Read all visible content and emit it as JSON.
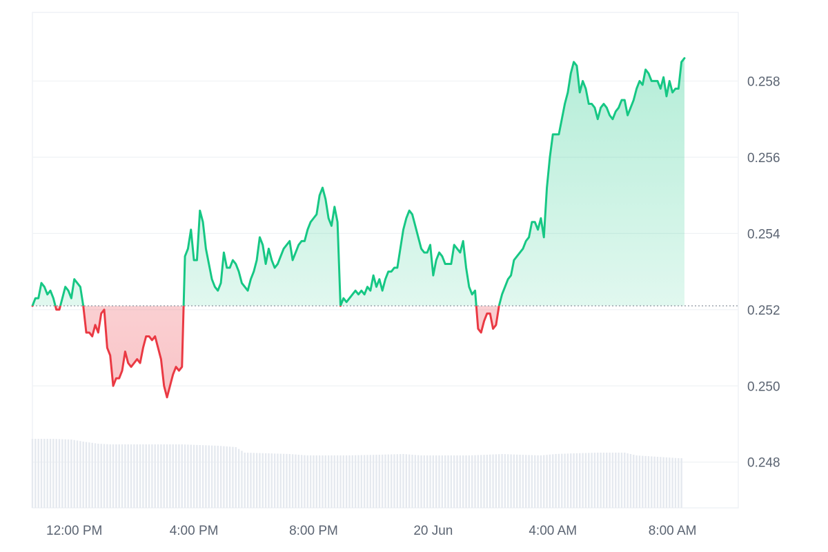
{
  "chart_data": {
    "type": "area",
    "title": "",
    "xlabel": "",
    "ylabel": "",
    "baseline": 0.2521,
    "ylim": [
      0.2468,
      0.2598
    ],
    "y_ticks": [
      0.248,
      0.25,
      0.252,
      0.254,
      0.256,
      0.258
    ],
    "y_tick_labels": [
      "0.248",
      "0.250",
      "0.252",
      "0.254",
      "0.256",
      "0.258"
    ],
    "x_ticks": [
      {
        "t": 12.0,
        "label": "12:00 PM"
      },
      {
        "t": 16.0,
        "label": "4:00 PM"
      },
      {
        "t": 20.0,
        "label": "8:00 PM"
      },
      {
        "t": 24.0,
        "label": "20 Jun"
      },
      {
        "t": 28.0,
        "label": "4:00 AM"
      },
      {
        "t": 32.0,
        "label": "8:00 AM"
      }
    ],
    "x_range": [
      10.6,
      34.2
    ],
    "grid": true,
    "colors": {
      "up_line": "#16c784",
      "down_line": "#ea3943",
      "up_fill": "#16c784",
      "down_fill": "#ea3943",
      "volume": "#e5e9ef",
      "grid": "#eff2f5",
      "baseline": "#8a939f"
    },
    "price": [
      [
        10.6,
        0.2521
      ],
      [
        10.7,
        0.2523
      ],
      [
        10.8,
        0.2523
      ],
      [
        10.9,
        0.2527
      ],
      [
        11.0,
        0.2526
      ],
      [
        11.1,
        0.2524
      ],
      [
        11.2,
        0.2525
      ],
      [
        11.3,
        0.2523
      ],
      [
        11.4,
        0.252
      ],
      [
        11.5,
        0.252
      ],
      [
        11.6,
        0.2523
      ],
      [
        11.7,
        0.2526
      ],
      [
        11.8,
        0.2525
      ],
      [
        11.9,
        0.2523
      ],
      [
        12.0,
        0.2528
      ],
      [
        12.1,
        0.2527
      ],
      [
        12.2,
        0.2526
      ],
      [
        12.3,
        0.2521
      ],
      [
        12.4,
        0.2514
      ],
      [
        12.5,
        0.2514
      ],
      [
        12.6,
        0.2513
      ],
      [
        12.7,
        0.2516
      ],
      [
        12.8,
        0.2514
      ],
      [
        12.9,
        0.2519
      ],
      [
        13.0,
        0.252
      ],
      [
        13.1,
        0.251
      ],
      [
        13.2,
        0.2508
      ],
      [
        13.3,
        0.25
      ],
      [
        13.4,
        0.2502
      ],
      [
        13.5,
        0.2502
      ],
      [
        13.6,
        0.2504
      ],
      [
        13.7,
        0.2509
      ],
      [
        13.8,
        0.2506
      ],
      [
        13.9,
        0.2505
      ],
      [
        14.0,
        0.2506
      ],
      [
        14.1,
        0.2507
      ],
      [
        14.2,
        0.2506
      ],
      [
        14.3,
        0.251
      ],
      [
        14.4,
        0.2513
      ],
      [
        14.5,
        0.2513
      ],
      [
        14.6,
        0.2512
      ],
      [
        14.7,
        0.2513
      ],
      [
        14.8,
        0.251
      ],
      [
        14.9,
        0.2507
      ],
      [
        15.0,
        0.25
      ],
      [
        15.1,
        0.2497
      ],
      [
        15.2,
        0.25
      ],
      [
        15.3,
        0.2503
      ],
      [
        15.4,
        0.2505
      ],
      [
        15.5,
        0.2504
      ],
      [
        15.6,
        0.2505
      ],
      [
        15.7,
        0.2534
      ],
      [
        15.8,
        0.2536
      ],
      [
        15.9,
        0.2541
      ],
      [
        16.0,
        0.2533
      ],
      [
        16.1,
        0.2533
      ],
      [
        16.2,
        0.2546
      ],
      [
        16.3,
        0.2543
      ],
      [
        16.4,
        0.2536
      ],
      [
        16.5,
        0.2532
      ],
      [
        16.6,
        0.2528
      ],
      [
        16.7,
        0.2526
      ],
      [
        16.8,
        0.2525
      ],
      [
        16.9,
        0.2527
      ],
      [
        17.0,
        0.2535
      ],
      [
        17.1,
        0.2531
      ],
      [
        17.2,
        0.2531
      ],
      [
        17.3,
        0.2533
      ],
      [
        17.4,
        0.2532
      ],
      [
        17.5,
        0.253
      ],
      [
        17.6,
        0.2527
      ],
      [
        17.7,
        0.2526
      ],
      [
        17.8,
        0.2525
      ],
      [
        17.9,
        0.2528
      ],
      [
        18.0,
        0.253
      ],
      [
        18.1,
        0.2533
      ],
      [
        18.2,
        0.2539
      ],
      [
        18.3,
        0.2537
      ],
      [
        18.4,
        0.2532
      ],
      [
        18.5,
        0.2536
      ],
      [
        18.6,
        0.2533
      ],
      [
        18.7,
        0.2531
      ],
      [
        18.8,
        0.2532
      ],
      [
        18.9,
        0.2534
      ],
      [
        19.0,
        0.2536
      ],
      [
        19.1,
        0.2537
      ],
      [
        19.2,
        0.2538
      ],
      [
        19.3,
        0.2533
      ],
      [
        19.4,
        0.2535
      ],
      [
        19.5,
        0.2537
      ],
      [
        19.6,
        0.2538
      ],
      [
        19.7,
        0.2538
      ],
      [
        19.8,
        0.2541
      ],
      [
        19.9,
        0.2543
      ],
      [
        20.0,
        0.2544
      ],
      [
        20.1,
        0.2545
      ],
      [
        20.2,
        0.255
      ],
      [
        20.3,
        0.2552
      ],
      [
        20.4,
        0.2549
      ],
      [
        20.5,
        0.2544
      ],
      [
        20.6,
        0.2542
      ],
      [
        20.7,
        0.2547
      ],
      [
        20.8,
        0.2543
      ],
      [
        20.9,
        0.2521
      ],
      [
        21.0,
        0.2523
      ],
      [
        21.1,
        0.2522
      ],
      [
        21.2,
        0.2523
      ],
      [
        21.3,
        0.2524
      ],
      [
        21.4,
        0.2525
      ],
      [
        21.5,
        0.2524
      ],
      [
        21.6,
        0.2525
      ],
      [
        21.7,
        0.2524
      ],
      [
        21.8,
        0.2526
      ],
      [
        21.9,
        0.2525
      ],
      [
        22.0,
        0.2529
      ],
      [
        22.1,
        0.2526
      ],
      [
        22.2,
        0.2528
      ],
      [
        22.3,
        0.2525
      ],
      [
        22.4,
        0.2528
      ],
      [
        22.5,
        0.253
      ],
      [
        22.6,
        0.253
      ],
      [
        22.7,
        0.2531
      ],
      [
        22.8,
        0.2531
      ],
      [
        22.9,
        0.2536
      ],
      [
        23.0,
        0.2541
      ],
      [
        23.1,
        0.2544
      ],
      [
        23.2,
        0.2546
      ],
      [
        23.3,
        0.2545
      ],
      [
        23.4,
        0.2542
      ],
      [
        23.5,
        0.2539
      ],
      [
        23.6,
        0.2536
      ],
      [
        23.7,
        0.2535
      ],
      [
        23.8,
        0.2535
      ],
      [
        23.9,
        0.2537
      ],
      [
        24.0,
        0.2529
      ],
      [
        24.1,
        0.2533
      ],
      [
        24.2,
        0.2535
      ],
      [
        24.3,
        0.2534
      ],
      [
        24.4,
        0.2532
      ],
      [
        24.5,
        0.2532
      ],
      [
        24.6,
        0.2532
      ],
      [
        24.7,
        0.2537
      ],
      [
        24.8,
        0.2536
      ],
      [
        24.9,
        0.2535
      ],
      [
        25.0,
        0.2538
      ],
      [
        25.1,
        0.2531
      ],
      [
        25.2,
        0.2526
      ],
      [
        25.3,
        0.2524
      ],
      [
        25.4,
        0.2525
      ],
      [
        25.5,
        0.2515
      ],
      [
        25.6,
        0.2514
      ],
      [
        25.7,
        0.2517
      ],
      [
        25.8,
        0.2519
      ],
      [
        25.9,
        0.2519
      ],
      [
        26.0,
        0.2515
      ],
      [
        26.1,
        0.2516
      ],
      [
        26.2,
        0.2521
      ],
      [
        26.3,
        0.2524
      ],
      [
        26.4,
        0.2526
      ],
      [
        26.5,
        0.2528
      ],
      [
        26.6,
        0.2529
      ],
      [
        26.7,
        0.2533
      ],
      [
        26.8,
        0.2534
      ],
      [
        26.9,
        0.2535
      ],
      [
        27.0,
        0.2536
      ],
      [
        27.1,
        0.2538
      ],
      [
        27.2,
        0.2539
      ],
      [
        27.3,
        0.2543
      ],
      [
        27.4,
        0.2543
      ],
      [
        27.5,
        0.2541
      ],
      [
        27.6,
        0.2544
      ],
      [
        27.7,
        0.2539
      ],
      [
        27.8,
        0.2552
      ],
      [
        27.9,
        0.256
      ],
      [
        28.0,
        0.2566
      ],
      [
        28.1,
        0.2566
      ],
      [
        28.2,
        0.2566
      ],
      [
        28.3,
        0.257
      ],
      [
        28.4,
        0.2574
      ],
      [
        28.5,
        0.2577
      ],
      [
        28.6,
        0.2582
      ],
      [
        28.7,
        0.2585
      ],
      [
        28.8,
        0.2584
      ],
      [
        28.9,
        0.2577
      ],
      [
        29.0,
        0.258
      ],
      [
        29.1,
        0.2578
      ],
      [
        29.2,
        0.2574
      ],
      [
        29.3,
        0.2574
      ],
      [
        29.4,
        0.2573
      ],
      [
        29.5,
        0.257
      ],
      [
        29.6,
        0.2573
      ],
      [
        29.7,
        0.2574
      ],
      [
        29.8,
        0.2573
      ],
      [
        29.9,
        0.2571
      ],
      [
        30.0,
        0.257
      ],
      [
        30.1,
        0.2572
      ],
      [
        30.2,
        0.2573
      ],
      [
        30.3,
        0.2575
      ],
      [
        30.4,
        0.2575
      ],
      [
        30.5,
        0.2571
      ],
      [
        30.6,
        0.2573
      ],
      [
        30.7,
        0.2575
      ],
      [
        30.8,
        0.2578
      ],
      [
        30.9,
        0.258
      ],
      [
        31.0,
        0.2579
      ],
      [
        31.1,
        0.2583
      ],
      [
        31.2,
        0.2582
      ],
      [
        31.3,
        0.258
      ],
      [
        31.4,
        0.258
      ],
      [
        31.5,
        0.258
      ],
      [
        31.6,
        0.2578
      ],
      [
        31.7,
        0.2581
      ],
      [
        31.8,
        0.2576
      ],
      [
        31.9,
        0.258
      ],
      [
        32.0,
        0.2577
      ],
      [
        32.1,
        0.2578
      ],
      [
        32.2,
        0.2578
      ],
      [
        32.3,
        0.2585
      ],
      [
        32.4,
        0.2586
      ]
    ],
    "volume": [
      [
        10.6,
        1.0
      ],
      [
        11.3,
        1.0
      ],
      [
        11.9,
        0.99
      ],
      [
        12.3,
        0.96
      ],
      [
        12.8,
        0.93
      ],
      [
        13.2,
        0.92
      ],
      [
        14.0,
        0.92
      ],
      [
        15.6,
        0.92
      ],
      [
        16.2,
        0.91
      ],
      [
        16.8,
        0.9
      ],
      [
        17.4,
        0.88
      ],
      [
        17.7,
        0.8
      ],
      [
        18.5,
        0.79
      ],
      [
        19.2,
        0.78
      ],
      [
        19.8,
        0.76
      ],
      [
        20.3,
        0.76
      ],
      [
        21.1,
        0.76
      ],
      [
        22.2,
        0.77
      ],
      [
        23.0,
        0.78
      ],
      [
        23.6,
        0.76
      ],
      [
        24.5,
        0.76
      ],
      [
        25.2,
        0.76
      ],
      [
        25.8,
        0.77
      ],
      [
        26.3,
        0.78
      ],
      [
        26.9,
        0.77
      ],
      [
        27.6,
        0.76
      ],
      [
        28.1,
        0.78
      ],
      [
        28.7,
        0.79
      ],
      [
        29.5,
        0.8
      ],
      [
        30.4,
        0.8
      ],
      [
        30.8,
        0.76
      ],
      [
        31.5,
        0.74
      ],
      [
        32.2,
        0.72
      ],
      [
        32.4,
        0.72
      ]
    ]
  }
}
